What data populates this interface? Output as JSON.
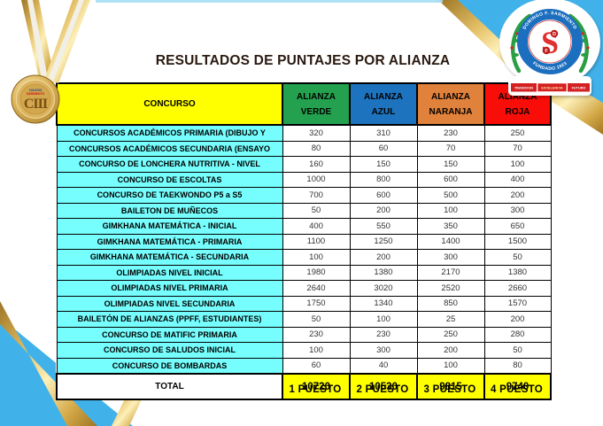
{
  "page": {
    "title": "RESULTADOS DE PUNTAJES POR ALIANZA",
    "title_color": "#2A1A10",
    "background_color": "#FFFFFF",
    "accent_sky_blue": "#41B2E9",
    "accent_gold": "#D9B24A"
  },
  "table": {
    "concurso_header": "CONCURSO",
    "concurso_header_bg": "#FFFF00",
    "row_label_bg": "#76FEFE",
    "columns": [
      {
        "name": "ALIANZA VERDE",
        "line1": "ALIANZA",
        "line2": "VERDE",
        "color": "#23A14E"
      },
      {
        "name": "ALIANZA AZUL",
        "line1": "ALIANZA",
        "line2": "AZUL",
        "color": "#1E73BE"
      },
      {
        "name": "ALIANZA NARANJA",
        "line1": "ALIANZA",
        "line2": "NARANJA",
        "color": "#E0813C"
      },
      {
        "name": "ALIANZA ROJA",
        "line1": "ALIANZA",
        "line2": "ROJA",
        "color": "#F90D09"
      }
    ],
    "rows": [
      {
        "label": "CONCURSOS ACADÉMICOS PRIMARIA (DIBUJO Y",
        "values": [
          320,
          310,
          230,
          250
        ]
      },
      {
        "label": "CONCURSOS ACADÉMICOS SECUNDARIA (ENSAYO",
        "values": [
          80,
          60,
          70,
          70
        ]
      },
      {
        "label": "CONCURSO DE LONCHERA NUTRITIVA - NIVEL",
        "values": [
          160,
          150,
          150,
          100
        ]
      },
      {
        "label": "CONCURSO DE ESCOLTAS",
        "values": [
          1000,
          800,
          600,
          400
        ]
      },
      {
        "label": "CONCURSO DE TAEKWONDO P5 a S5",
        "values": [
          700,
          600,
          500,
          200
        ]
      },
      {
        "label": "BAILETON DE MUÑECOS",
        "values": [
          50,
          200,
          100,
          300
        ]
      },
      {
        "label": "GIMKHANA MATEMÁTICA - INICIAL",
        "values": [
          400,
          550,
          350,
          650
        ]
      },
      {
        "label": "GIMKHANA MATEMÁTICA - PRIMARIA",
        "values": [
          1100,
          1250,
          1400,
          1500
        ]
      },
      {
        "label": "GIMKHANA MATEMÁTICA - SECUNDARIA",
        "values": [
          100,
          200,
          300,
          50
        ]
      },
      {
        "label": "OLIMPIADAS NIVEL INICIAL",
        "values": [
          1980,
          1380,
          2170,
          1380
        ]
      },
      {
        "label": "OLIMPIADAS NIVEL PRIMARIA",
        "values": [
          2640,
          3020,
          2520,
          2660
        ]
      },
      {
        "label": "OLIMPIADAS NIVEL SECUNDARIA",
        "values": [
          1750,
          1340,
          850,
          1570
        ]
      },
      {
        "label": "BAILETÓN DE ALIANZAS (PPFF, ESTUDIANTES)",
        "values": [
          50,
          100,
          25,
          200
        ]
      },
      {
        "label": "CONCURSO DE MATIFIC PRIMARIA",
        "values": [
          230,
          230,
          250,
          280
        ]
      },
      {
        "label": "CONCURSO DE SALUDOS INICIAL",
        "values": [
          100,
          300,
          200,
          50
        ]
      },
      {
        "label": "CONCURSO DE BOMBARDAS",
        "values": [
          60,
          40,
          100,
          80
        ]
      }
    ],
    "total": {
      "label": "TOTAL",
      "values": [
        10720,
        10530,
        9815,
        9740
      ],
      "value_bg": "#FFFF00"
    },
    "puestos": [
      "1 PUESTO",
      "2 PUESTO",
      "3 PUESTO",
      "4 PUESTO"
    ]
  },
  "medal": {
    "top_text": "COLEGIO",
    "name_text": "SARMIENTO",
    "monogram": "CIII"
  },
  "logo": {
    "ring_top": "DOMINGO F. SARMIENTO",
    "ring_bottom": "FUNDADO 1923",
    "monogram": "S",
    "letter_d": "D",
    "letter_f": "F",
    "banner": [
      "TRADICION",
      "EXCELENCIA",
      "FUTURO"
    ]
  }
}
